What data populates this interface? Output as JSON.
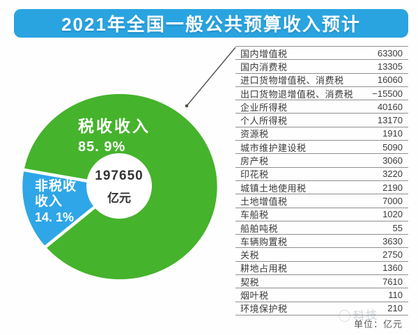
{
  "title": "2021年全国一般公共预算收入预计",
  "colors": {
    "banner": "#2aa4e0",
    "tax_green": "#45b32c",
    "nontax_blue": "#2fa6e8",
    "table_line": "#8f8f8f"
  },
  "pie": {
    "tax_label": "税收收入",
    "tax_pct": "85. 9%",
    "nontax_lines": [
      "非税收",
      "收入",
      "14. 1%"
    ],
    "center_value": "197650",
    "center_unit": "亿元"
  },
  "table": {
    "unit_note": "单位：亿元"
  },
  "watermark": "科技",
  "chart_data": {
    "type": "pie",
    "title": "2021年全国一般公共预算收入预计",
    "center_total": 197650,
    "unit": "亿元",
    "legend_position": "on-slice",
    "series": [
      {
        "name": "税收收入",
        "value": 85.9,
        "color": "#45b32c"
      },
      {
        "name": "非税收收入",
        "value": 14.1,
        "color": "#2fa6e8"
      }
    ],
    "breakdown_unit": "亿元",
    "breakdown": [
      {
        "label": "国内增值税",
        "value": 63300
      },
      {
        "label": "国内消费税",
        "value": 13305
      },
      {
        "label": "进口货物增值税、消费税",
        "value": 16060
      },
      {
        "label": "出口货物退增值税、消费税",
        "value": -15500
      },
      {
        "label": "企业所得税",
        "value": 40160
      },
      {
        "label": "个人所得税",
        "value": 13170
      },
      {
        "label": "资源税",
        "value": 1910
      },
      {
        "label": "城市维护建设税",
        "value": 5090
      },
      {
        "label": "房产税",
        "value": 3060
      },
      {
        "label": "印花税",
        "value": 3220
      },
      {
        "label": "城镇土地使用税",
        "value": 2190
      },
      {
        "label": "土地增值税",
        "value": 7000
      },
      {
        "label": "车船税",
        "value": 1020
      },
      {
        "label": "船舶吨税",
        "value": 55
      },
      {
        "label": "车辆购置税",
        "value": 3630
      },
      {
        "label": "关税",
        "value": 2750
      },
      {
        "label": "耕地占用税",
        "value": 1360
      },
      {
        "label": "契税",
        "value": 7610
      },
      {
        "label": "烟叶税",
        "value": 110
      },
      {
        "label": "环境保护税",
        "value": 210
      }
    ]
  }
}
